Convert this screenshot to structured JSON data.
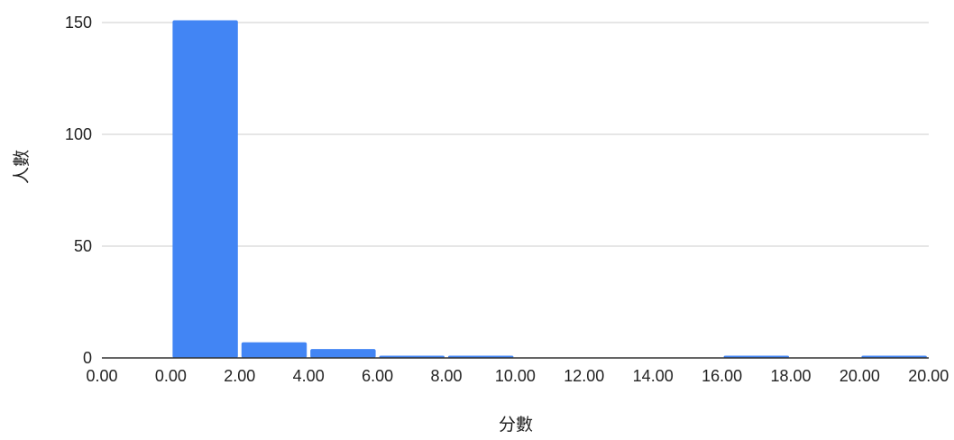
{
  "chart_data": {
    "type": "bar",
    "title": "",
    "xlabel": "分數",
    "ylabel": "人數",
    "ylim": [
      0,
      150
    ],
    "y_ticks": [
      "0",
      "50",
      "100",
      "150"
    ],
    "x_ticks": [
      "0.00",
      "0.00",
      "2.00",
      "4.00",
      "6.00",
      "8.00",
      "10.00",
      "12.00",
      "14.00",
      "16.00",
      "18.00",
      "20.00",
      "20.00"
    ],
    "bins": [
      {
        "from": "0.00",
        "to": "2.00",
        "value": 151
      },
      {
        "from": "2.00",
        "to": "4.00",
        "value": 7
      },
      {
        "from": "4.00",
        "to": "6.00",
        "value": 4
      },
      {
        "from": "6.00",
        "to": "8.00",
        "value": 1
      },
      {
        "from": "8.00",
        "to": "10.00",
        "value": 1
      },
      {
        "from": "10.00",
        "to": "12.00",
        "value": 0
      },
      {
        "from": "12.00",
        "to": "14.00",
        "value": 0
      },
      {
        "from": "14.00",
        "to": "16.00",
        "value": 0
      },
      {
        "from": "16.00",
        "to": "18.00",
        "value": 1
      },
      {
        "from": "18.00",
        "to": "20.00",
        "value": 0
      },
      {
        "from": "20.00",
        "to": "20.00",
        "value": 1
      }
    ],
    "grid": true,
    "bar_color": "#4285F4",
    "grid_color": "#cccccc",
    "axis_color": "#333333"
  }
}
